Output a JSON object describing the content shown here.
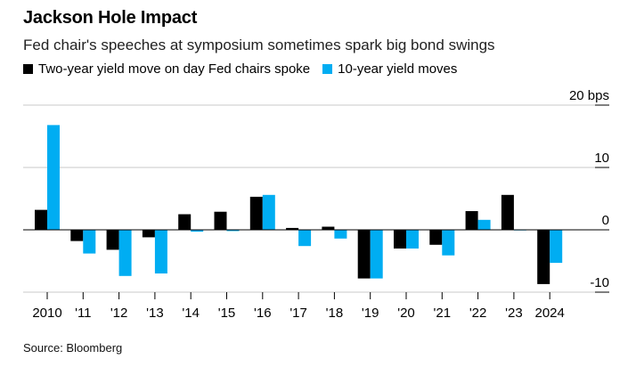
{
  "title": "Jackson Hole Impact",
  "subtitle": "Fed chair's speeches at symposium sometimes spark big bond swings",
  "source": "Source: Bloomberg",
  "colors": {
    "two_year": "#000000",
    "ten_year": "#00adf2",
    "grid": "#c8c8c8",
    "zero_line": "#000000"
  },
  "chart_data": {
    "type": "bar",
    "categories": [
      "2010",
      "'11",
      "'12",
      "'13",
      "'14",
      "'15",
      "'16",
      "'17",
      "'18",
      "'19",
      "'20",
      "'21",
      "'22",
      "'23",
      "2024"
    ],
    "series": [
      {
        "name": "Two-year yield move on day Fed chairs spoke",
        "color": "#000000",
        "values": [
          3.2,
          -1.8,
          -3.2,
          -1.2,
          2.5,
          2.9,
          5.3,
          0.3,
          0.5,
          -7.8,
          -3.0,
          -2.4,
          3.0,
          5.6,
          -8.7
        ]
      },
      {
        "name": "10-year yield moves",
        "color": "#00adf2",
        "values": [
          16.8,
          -3.8,
          -7.4,
          -7.0,
          -0.3,
          -0.2,
          5.6,
          -2.6,
          -1.4,
          -7.8,
          -3.0,
          -4.1,
          1.6,
          -0.1,
          -5.3
        ]
      }
    ],
    "y_tick_labels": [
      "20 bps",
      "10",
      "0",
      "-10"
    ],
    "y_ticks": [
      20,
      10,
      0,
      -10
    ],
    "ylim": [
      -11,
      21
    ],
    "grid": true,
    "legend": "top-left",
    "y_axis_position": "right"
  }
}
